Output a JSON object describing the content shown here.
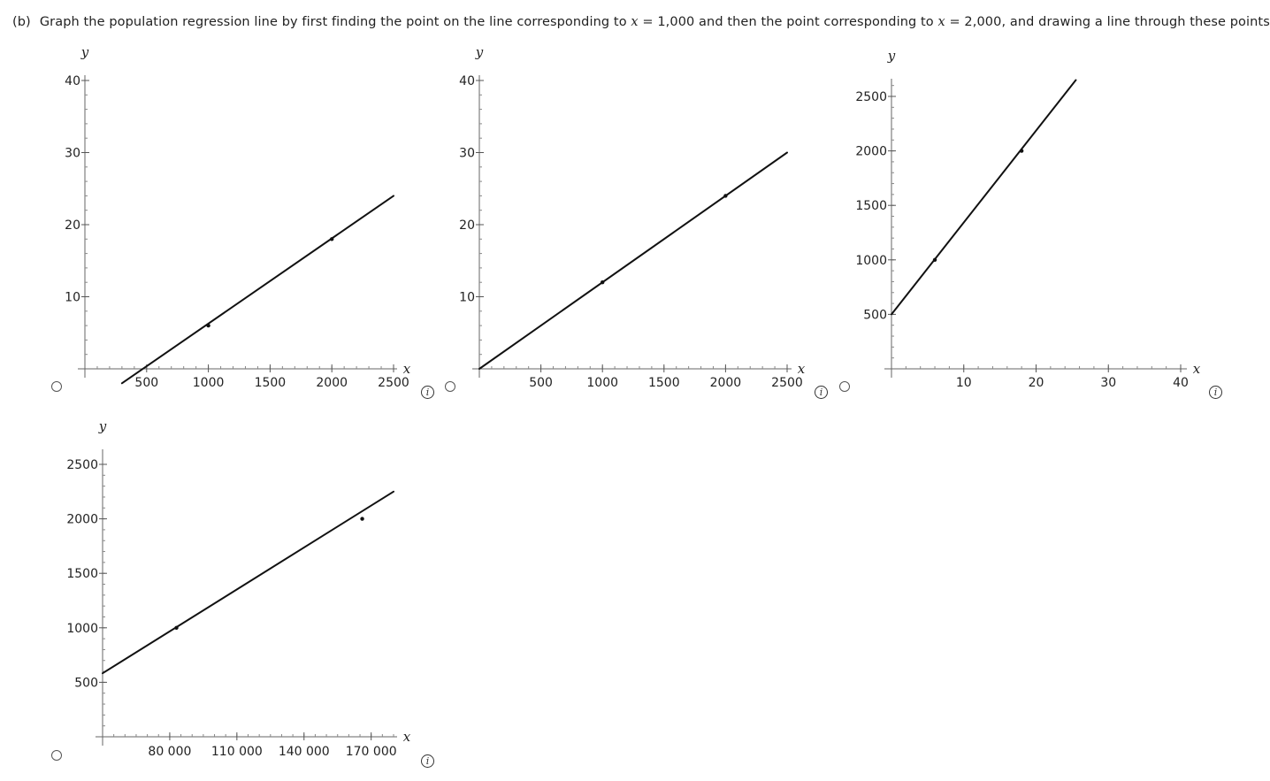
{
  "question": {
    "part_label": "(b)",
    "text_before": "Graph the population regression line by first finding the point on the line corresponding to ",
    "var1": "x",
    "text_mid1": " = 1,000 and then the point corresponding to ",
    "var2": "x",
    "text_mid2": " = 2,000, and drawing a line through these points."
  },
  "axis_labels": {
    "x": "x",
    "y": "y"
  },
  "chart_data": [
    {
      "type": "line",
      "xlim": [
        0,
        2550
      ],
      "ylim": [
        0,
        40
      ],
      "x_ticks": [
        500,
        1000,
        1500,
        2000,
        2500
      ],
      "x_tick_labels": [
        "500",
        "1000",
        "1500",
        "2000",
        "2500"
      ],
      "y_ticks": [
        10,
        20,
        30,
        40
      ],
      "y_tick_labels": [
        "10",
        "20",
        "30",
        "40"
      ],
      "x_minor_step": 100,
      "y_minor_step": 2,
      "series": [
        {
          "x": [
            300,
            2500
          ],
          "y": [
            -2,
            24
          ]
        }
      ],
      "points": [
        {
          "x": 1000,
          "y": 6
        },
        {
          "x": 2000,
          "y": 18
        }
      ]
    },
    {
      "type": "line",
      "xlim": [
        0,
        2550
      ],
      "ylim": [
        0,
        40
      ],
      "x_ticks": [
        500,
        1000,
        1500,
        2000,
        2500
      ],
      "x_tick_labels": [
        "500",
        "1000",
        "1500",
        "2000",
        "2500"
      ],
      "y_ticks": [
        10,
        20,
        30,
        40
      ],
      "y_tick_labels": [
        "10",
        "20",
        "30",
        "40"
      ],
      "x_minor_step": 100,
      "y_minor_step": 2,
      "series": [
        {
          "x": [
            0,
            2500
          ],
          "y": [
            0,
            30
          ]
        }
      ],
      "points": [
        {
          "x": 1000,
          "y": 12
        },
        {
          "x": 2000,
          "y": 24
        }
      ]
    },
    {
      "type": "line",
      "xlim": [
        0,
        41
      ],
      "ylim": [
        0,
        2650
      ],
      "x_ticks": [
        10,
        20,
        30,
        40
      ],
      "x_tick_labels": [
        "10",
        "20",
        "30",
        "40"
      ],
      "y_ticks": [
        500,
        1000,
        1500,
        2000,
        2500
      ],
      "y_tick_labels": [
        "500",
        "1000",
        "1500",
        "2000",
        "2500"
      ],
      "x_minor_step": 2,
      "y_minor_step": 100,
      "series": [
        {
          "x": [
            0,
            25.5
          ],
          "y": [
            500,
            2650
          ]
        }
      ],
      "points": [
        {
          "x": 6,
          "y": 1000
        },
        {
          "x": 18,
          "y": 2000
        }
      ]
    },
    {
      "type": "line",
      "xlim": [
        50000,
        180000
      ],
      "ylim": [
        0,
        2500
      ],
      "x_ticks": [
        80000,
        110000,
        140000,
        170000
      ],
      "x_tick_labels": [
        "80 000",
        "110 000",
        "140 000",
        "170 000"
      ],
      "y_ticks": [
        500,
        1000,
        1500,
        2000,
        2500
      ],
      "y_tick_labels": [
        "500",
        "1000",
        "1500",
        "2000",
        "2500"
      ],
      "x_minor_step": 5000,
      "y_minor_step": 100,
      "series": [
        {
          "x": [
            50000,
            180000
          ],
          "y": [
            583,
            2250
          ]
        }
      ],
      "points": [
        {
          "x": 83000,
          "y": 1000
        },
        {
          "x": 166000,
          "y": 2000
        }
      ]
    }
  ]
}
